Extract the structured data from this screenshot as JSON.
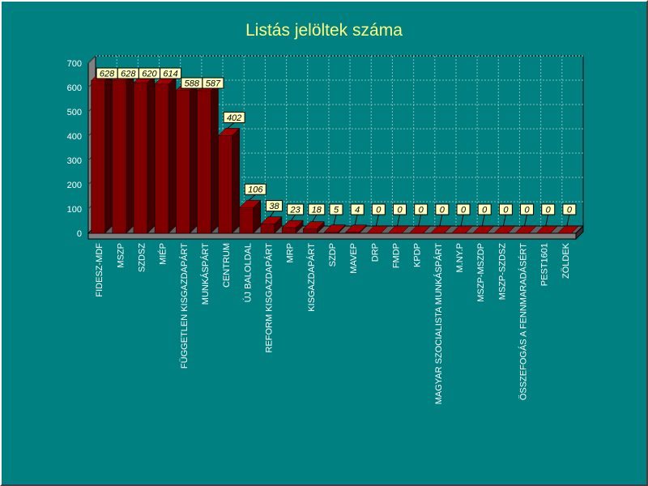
{
  "chart_data": {
    "type": "bar",
    "title": "Listás jelöltek száma",
    "categories": [
      "FIDESZ-MDF",
      "MSZP",
      "SZDSZ",
      "MIÉP",
      "FÜGGETLEN KISGAZDAPÁRT",
      "MUNKÁSPÁRT",
      "CENTRUM",
      "ÚJ BALOLDAL",
      "REFORM KISGAZDAPÁRT",
      "MRP",
      "KISGAZDAPÁRT",
      "SZDP",
      "MAVEP",
      "DRP",
      "FMDP",
      "KPDP",
      "MAGYAR SZOCIALISTA MUNKÁSPÁRT",
      "M.NY.P",
      "MSZP-MSZDP",
      "MSZP-SZDSZ",
      "ÖSSZEFOGÁS A FENNMARADÁSÉRT",
      "PEST1601",
      "ZÖLDEK"
    ],
    "values": [
      628,
      628,
      620,
      614,
      588,
      587,
      402,
      106,
      38,
      23,
      18,
      5,
      4,
      0,
      0,
      0,
      0,
      0,
      0,
      0,
      0,
      0,
      0
    ],
    "yticks": [
      0,
      100,
      200,
      300,
      400,
      500,
      600,
      700
    ],
    "ylim": [
      0,
      700
    ],
    "grid": true,
    "colors": {
      "background": "#008080",
      "bar": "#800000",
      "bar_side": "#400000",
      "bar_top": "#a00000",
      "label_fill": "#ffffc0",
      "text": "#ffffff",
      "title": "#ffff80"
    }
  }
}
